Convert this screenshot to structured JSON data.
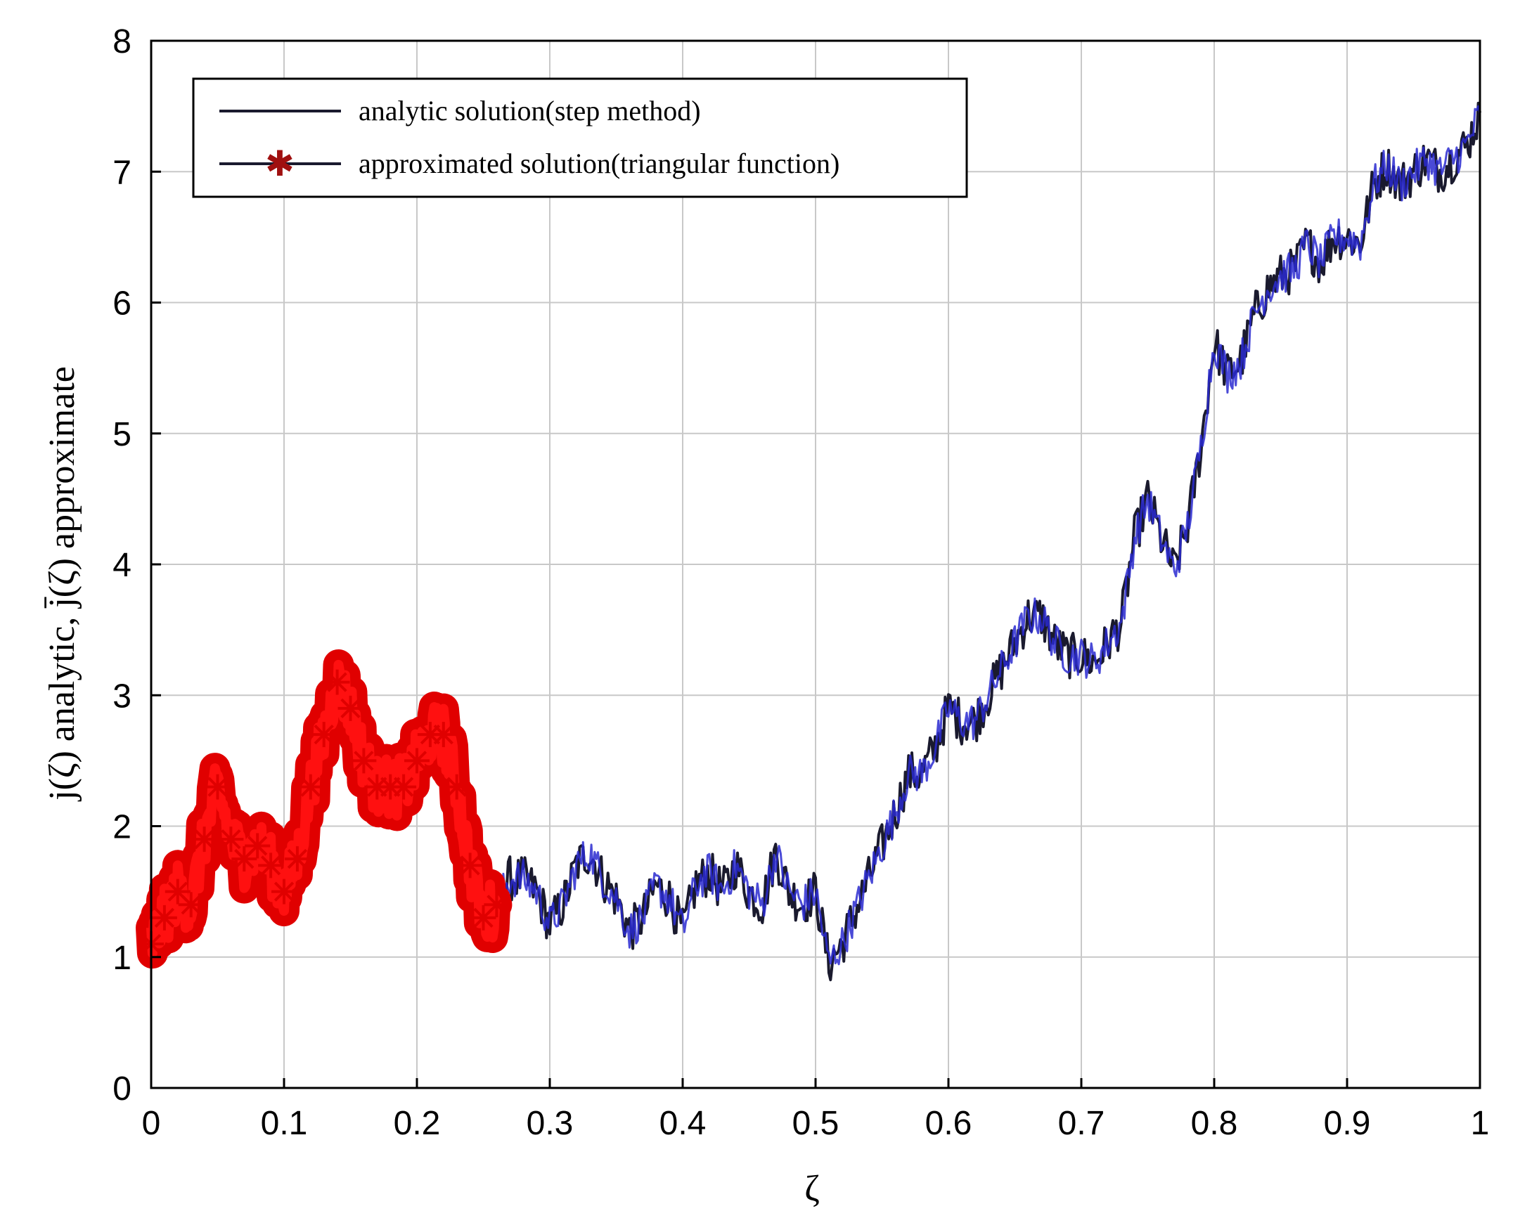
{
  "chart_data": {
    "type": "line",
    "title": "",
    "xlabel": "ζ",
    "ylabel": "j(ζ) analytic, j̄(ζ) approximate",
    "xlim": [
      0,
      1
    ],
    "ylim": [
      0,
      8
    ],
    "x_ticks": [
      0,
      0.1,
      0.2,
      0.3,
      0.4,
      0.5,
      0.6,
      0.7,
      0.8,
      0.9,
      1
    ],
    "x_tick_labels": [
      "0",
      "0.1",
      "0.2",
      "0.3",
      "0.4",
      "0.5",
      "0.6",
      "0.7",
      "0.8",
      "0.9",
      "1"
    ],
    "y_ticks": [
      0,
      1,
      2,
      3,
      4,
      5,
      6,
      7,
      8
    ],
    "y_tick_labels": [
      "0",
      "1",
      "2",
      "3",
      "4",
      "5",
      "6",
      "7",
      "8"
    ],
    "grid": true,
    "legend_position": "top-left",
    "series": [
      {
        "name": "analytic solution(step method)",
        "color": "#1a1a2e",
        "marker": "none",
        "x": [
          0,
          0.01,
          0.02,
          0.03,
          0.04,
          0.05,
          0.06,
          0.07,
          0.08,
          0.09,
          0.1,
          0.11,
          0.12,
          0.13,
          0.14,
          0.15,
          0.16,
          0.17,
          0.18,
          0.19,
          0.2,
          0.21,
          0.22,
          0.23,
          0.24,
          0.25,
          0.26,
          0.27,
          0.28,
          0.29,
          0.3,
          0.31,
          0.32,
          0.33,
          0.34,
          0.35,
          0.36,
          0.37,
          0.38,
          0.39,
          0.4,
          0.41,
          0.42,
          0.43,
          0.44,
          0.45,
          0.46,
          0.47,
          0.48,
          0.49,
          0.5,
          0.51,
          0.52,
          0.53,
          0.54,
          0.55,
          0.56,
          0.57,
          0.58,
          0.59,
          0.6,
          0.61,
          0.62,
          0.63,
          0.64,
          0.65,
          0.66,
          0.67,
          0.68,
          0.69,
          0.7,
          0.71,
          0.72,
          0.73,
          0.74,
          0.75,
          0.76,
          0.77,
          0.78,
          0.79,
          0.8,
          0.81,
          0.82,
          0.83,
          0.84,
          0.85,
          0.86,
          0.87,
          0.88,
          0.89,
          0.9,
          0.91,
          0.92,
          0.93,
          0.94,
          0.95,
          0.96,
          0.97,
          0.98,
          0.99,
          1.0
        ],
        "y": [
          1.1,
          1.3,
          1.5,
          1.4,
          1.9,
          2.3,
          1.9,
          1.75,
          1.85,
          1.7,
          1.5,
          1.75,
          2.3,
          2.7,
          3.1,
          2.9,
          2.5,
          2.3,
          2.3,
          2.3,
          2.5,
          2.7,
          2.7,
          2.3,
          1.7,
          1.3,
          1.4,
          1.6,
          1.6,
          1.5,
          1.25,
          1.4,
          1.7,
          1.8,
          1.6,
          1.45,
          1.2,
          1.3,
          1.55,
          1.45,
          1.2,
          1.55,
          1.65,
          1.5,
          1.7,
          1.5,
          1.4,
          1.8,
          1.5,
          1.4,
          1.5,
          0.95,
          1.1,
          1.35,
          1.6,
          1.85,
          2.1,
          2.4,
          2.4,
          2.6,
          2.9,
          2.8,
          2.8,
          3.0,
          3.2,
          3.4,
          3.6,
          3.6,
          3.4,
          3.3,
          3.3,
          3.25,
          3.4,
          3.55,
          4.2,
          4.5,
          4.2,
          3.95,
          4.3,
          4.9,
          5.7,
          5.45,
          5.55,
          5.9,
          6.1,
          6.2,
          6.25,
          6.45,
          6.3,
          6.5,
          6.5,
          6.45,
          6.9,
          7.05,
          6.9,
          7.0,
          7.1,
          7.0,
          7.1,
          7.2,
          7.45
        ]
      },
      {
        "name": "approximated solution(triangular function)",
        "color": "#e00000",
        "marker": "star",
        "x": [
          0,
          0.01,
          0.02,
          0.03,
          0.04,
          0.05,
          0.06,
          0.07,
          0.08,
          0.09,
          0.1,
          0.11,
          0.12,
          0.13,
          0.14,
          0.15,
          0.16,
          0.17,
          0.18,
          0.19,
          0.2,
          0.21,
          0.22,
          0.23,
          0.24,
          0.25,
          0.26
        ],
        "y": [
          1.1,
          1.3,
          1.5,
          1.4,
          1.9,
          2.3,
          1.9,
          1.75,
          1.85,
          1.7,
          1.5,
          1.75,
          2.3,
          2.7,
          3.1,
          2.9,
          2.5,
          2.3,
          2.3,
          2.3,
          2.5,
          2.7,
          2.7,
          2.3,
          1.7,
          1.3,
          1.4
        ]
      }
    ]
  }
}
